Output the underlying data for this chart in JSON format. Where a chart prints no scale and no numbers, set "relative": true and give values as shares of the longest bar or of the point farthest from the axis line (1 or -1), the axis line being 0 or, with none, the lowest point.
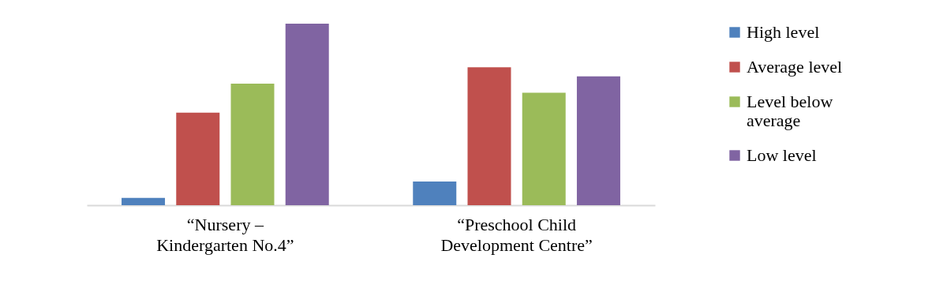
{
  "chart_data": {
    "type": "bar",
    "relative": true,
    "legend": "right",
    "categories": [
      "“Nursery – Kindergarten No.4”",
      "“Preschool Child Development Centre”"
    ],
    "series": [
      {
        "name": "High level",
        "color": "#4f81bd",
        "values": [
          0.04,
          0.13
        ]
      },
      {
        "name": "Average level",
        "color": "#c0504d",
        "values": [
          0.51,
          0.76
        ]
      },
      {
        "name": "Level below average",
        "color": "#9bbb59",
        "values": [
          0.67,
          0.62
        ]
      },
      {
        "name": "Low level",
        "color": "#8064a2",
        "values": [
          1,
          0.71
        ]
      }
    ]
  }
}
